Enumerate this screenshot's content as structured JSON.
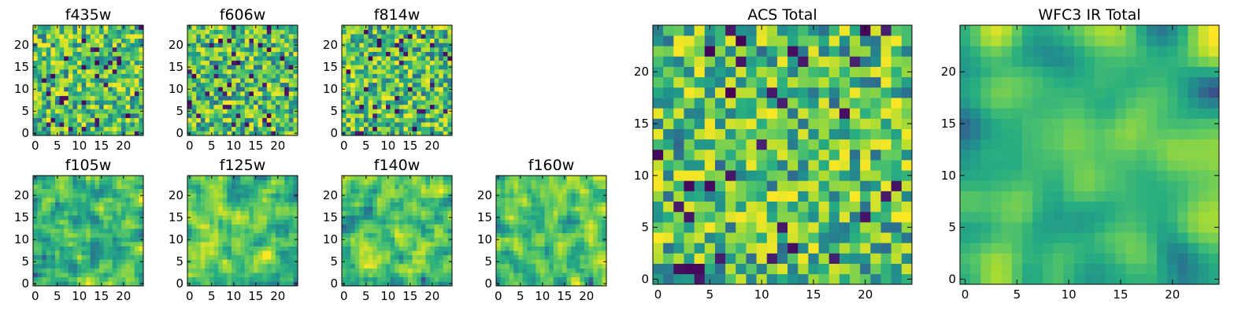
{
  "chart_data": [
    {
      "type": "heatmap",
      "title": "f435w",
      "xticks": [
        0,
        5,
        10,
        15,
        20
      ],
      "yticks": [
        0,
        5,
        10,
        15,
        20
      ],
      "xlim": [
        0,
        25
      ],
      "ylim": [
        0,
        25
      ],
      "grid": false,
      "colormap": "viridis"
    },
    {
      "type": "heatmap",
      "title": "f606w",
      "xticks": [
        0,
        5,
        10,
        15,
        20
      ],
      "yticks": [
        0,
        5,
        10,
        15,
        20
      ],
      "xlim": [
        0,
        25
      ],
      "ylim": [
        0,
        25
      ],
      "grid": false,
      "colormap": "viridis"
    },
    {
      "type": "heatmap",
      "title": "f814w",
      "xticks": [
        0,
        5,
        10,
        15,
        20
      ],
      "yticks": [
        0,
        5,
        10,
        15,
        20
      ],
      "xlim": [
        0,
        25
      ],
      "ylim": [
        0,
        25
      ],
      "grid": false,
      "colormap": "viridis"
    },
    {
      "type": "heatmap",
      "title": "f105w",
      "xticks": [
        0,
        5,
        10,
        15,
        20
      ],
      "yticks": [
        0,
        5,
        10,
        15,
        20
      ],
      "xlim": [
        0,
        25
      ],
      "ylim": [
        0,
        25
      ],
      "grid": false,
      "colormap": "viridis"
    },
    {
      "type": "heatmap",
      "title": "f125w",
      "xticks": [
        0,
        5,
        10,
        15,
        20
      ],
      "yticks": [
        0,
        5,
        10,
        15,
        20
      ],
      "xlim": [
        0,
        25
      ],
      "ylim": [
        0,
        25
      ],
      "grid": false,
      "colormap": "viridis"
    },
    {
      "type": "heatmap",
      "title": "f140w",
      "xticks": [
        0,
        5,
        10,
        15,
        20
      ],
      "yticks": [
        0,
        5,
        10,
        15,
        20
      ],
      "xlim": [
        0,
        25
      ],
      "ylim": [
        0,
        25
      ],
      "grid": false,
      "colormap": "viridis"
    },
    {
      "type": "heatmap",
      "title": "f160w",
      "xticks": [
        0,
        5,
        10,
        15,
        20
      ],
      "yticks": [
        0,
        5,
        10,
        15,
        20
      ],
      "xlim": [
        0,
        25
      ],
      "ylim": [
        0,
        25
      ],
      "grid": false,
      "colormap": "viridis"
    },
    {
      "type": "heatmap",
      "title": "ACS Total",
      "xticks": [
        0,
        5,
        10,
        15,
        20
      ],
      "yticks": [
        0,
        5,
        10,
        15,
        20
      ],
      "xlim": [
        0,
        25
      ],
      "ylim": [
        0,
        25
      ],
      "grid": false,
      "colormap": "viridis"
    },
    {
      "type": "heatmap",
      "title": "WFC3 IR Total",
      "xticks": [
        0,
        5,
        10,
        15,
        20
      ],
      "yticks": [
        0,
        5,
        10,
        15,
        20
      ],
      "xlim": [
        0,
        25
      ],
      "ylim": [
        0,
        25
      ],
      "grid": false,
      "colormap": "viridis"
    }
  ]
}
